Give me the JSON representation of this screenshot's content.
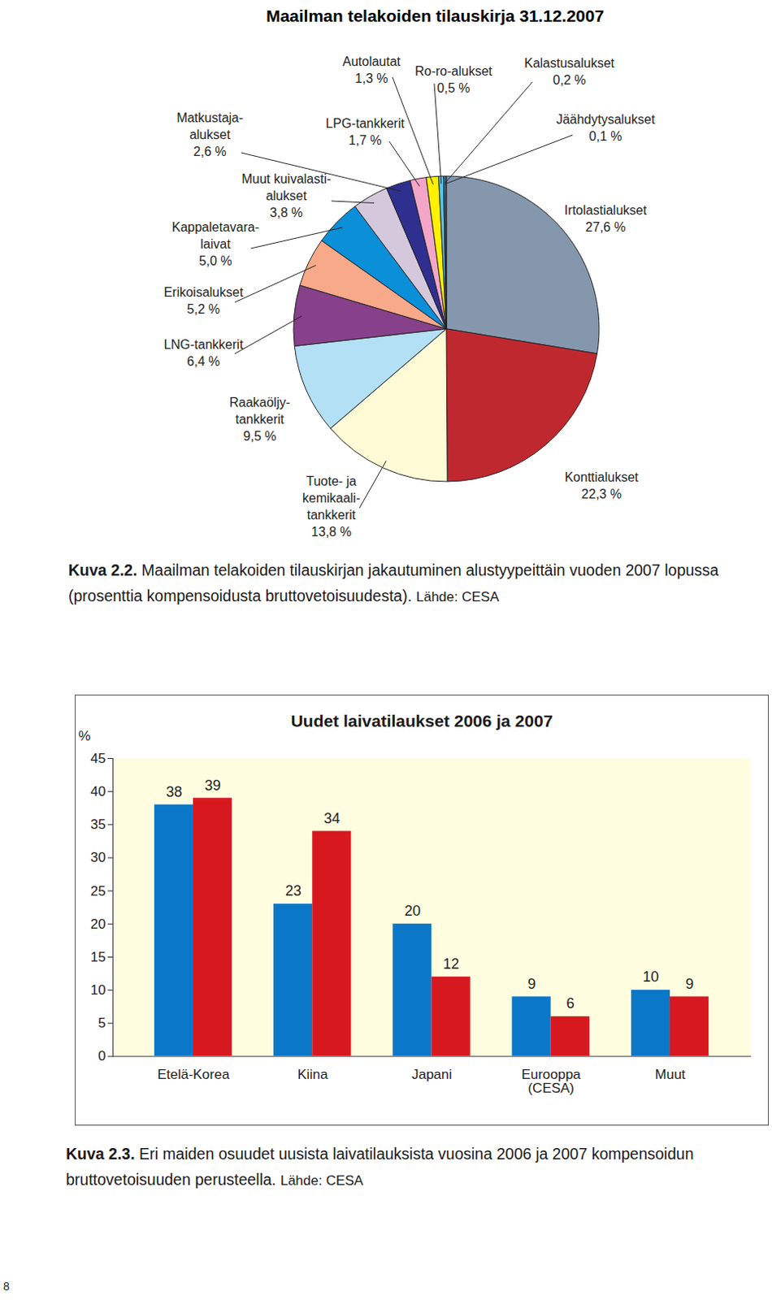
{
  "chart_data": [
    {
      "type": "pie",
      "title": "Maailman telakoiden tilauskirja 31.12.2007",
      "categories": [
        "Irtolastialukset",
        "Konttialukset",
        "Tuote- ja\nkemikaali-\ntankkerit",
        "Raakaöljy-\ntankkerit",
        "LNG-tankkerit",
        "Erikoisalukset",
        "Kappaletavara-\nlaivat",
        "Muut kuivalasti-\nalukset",
        "Matkustaja-\nalukset",
        "LPG-tankkerit",
        "Autolautat",
        "Ro-ro-alukset",
        "Kalastusalukset",
        "Jäähdytysalukset"
      ],
      "values": [
        27.6,
        22.3,
        13.8,
        9.5,
        6.4,
        5.2,
        5.0,
        3.8,
        2.6,
        1.7,
        1.3,
        0.5,
        0.2,
        0.1
      ],
      "value_labels": [
        "27,6 %",
        "22,3 %",
        "13,8 %",
        "9,5 %",
        "6,4 %",
        "5,2 %",
        "5,0 %",
        "3,8 %",
        "2,6 %",
        "1,7 %",
        "1,3 %",
        "0,5 %",
        "0,2 %",
        "0,1 %"
      ],
      "colors": [
        "#8497ad",
        "#c0282f",
        "#fffbd6",
        "#b3e0f5",
        "#86418a",
        "#f7a98a",
        "#0a8fd8",
        "#d6c8dc",
        "#2e2f8f",
        "#f3a6c8",
        "#fff200",
        "#5bc5e6",
        "#3c8dc5",
        "#c9c9c9"
      ],
      "data_labels": true,
      "caption": {
        "label": "Kuva 2.2.",
        "text": "Maailman telakoiden tilauskirjan jakautuminen alustyypeittäin vuoden 2007 lopussa (prosenttia kompensoidusta bruttovetoisuudesta).",
        "source": "Lähde: CESA"
      }
    },
    {
      "type": "bar",
      "title": "Uudet laivatilaukset 2006 ja 2007",
      "categories": [
        "Etelä-Korea",
        "Kiina",
        "Japani",
        "Eurooppa\n(CESA)",
        "Muut"
      ],
      "series": [
        {
          "color": "#0a77c8",
          "values": [
            38,
            23,
            20,
            9,
            10
          ]
        },
        {
          "color": "#d7191f",
          "values": [
            39,
            34,
            12,
            6,
            9
          ]
        }
      ],
      "y_label": "%",
      "ylim": [
        0,
        45
      ],
      "yticks": [
        0,
        5,
        10,
        15,
        20,
        25,
        30,
        35,
        40,
        45
      ],
      "grid": false,
      "data_labels": true,
      "caption": {
        "label": "Kuva 2.3.",
        "text": "Eri maiden osuudet uusista laivatilauksista vuosina 2006 ja 2007 kompensoidun bruttovetoisuuden perusteella.",
        "source": "Lähde: CESA"
      }
    }
  ],
  "page_number": "8"
}
